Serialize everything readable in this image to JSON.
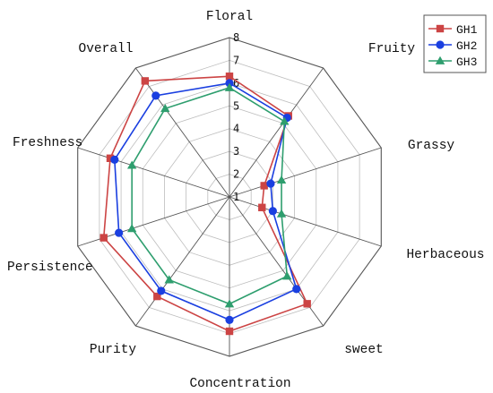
{
  "chart_data": {
    "type": "radar",
    "axes": [
      "Floral",
      "Fruity",
      "Grassy",
      "Herbaceous",
      "sweet",
      "Concentration",
      "Purity",
      "Persistence",
      "Freshness",
      "Overall"
    ],
    "rlim": [
      1,
      8
    ],
    "ticks": [
      "1",
      "2",
      "3",
      "4",
      "5",
      "6",
      "7",
      "8"
    ],
    "grid": true,
    "legend_position": "top-right",
    "series": [
      {
        "name": "GH1",
        "color": "#cc4444",
        "marker": "square",
        "values": [
          6.3,
          5.4,
          2.6,
          2.5,
          6.8,
          6.9,
          6.4,
          6.8,
          6.5,
          7.3
        ]
      },
      {
        "name": "GH2",
        "color": "#1a3fe0",
        "marker": "circle",
        "values": [
          6.0,
          5.3,
          2.9,
          3.0,
          6.0,
          6.4,
          6.1,
          6.1,
          6.3,
          6.5
        ]
      },
      {
        "name": "GH3",
        "color": "#2e9e6e",
        "marker": "triangle",
        "values": [
          5.8,
          5.1,
          3.4,
          3.4,
          5.3,
          5.7,
          5.5,
          5.5,
          5.5,
          5.8
        ]
      }
    ]
  }
}
